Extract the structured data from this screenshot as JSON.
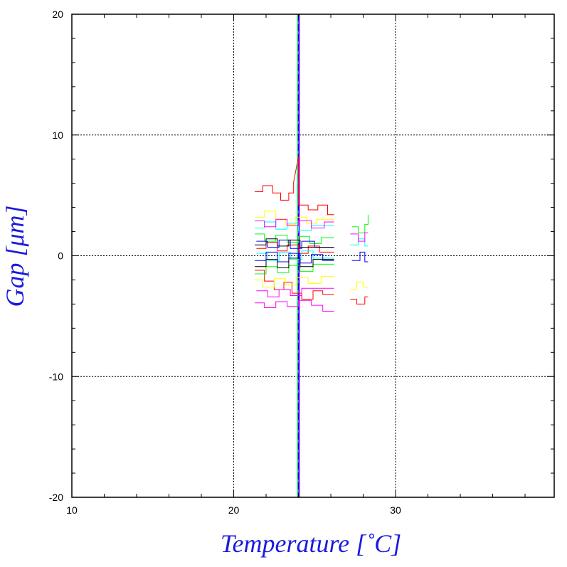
{
  "chart_data": {
    "type": "line",
    "title": "",
    "xlabel": "Temperature [˚C]",
    "ylabel": "Gap [μm]",
    "xlim": [
      10,
      39.8
    ],
    "ylim": [
      -20,
      20
    ],
    "x_ticks": [
      10,
      20,
      30
    ],
    "y_ticks": [
      -20,
      -10,
      0,
      10,
      20
    ],
    "grid": true,
    "legend": "none",
    "colors": [
      "#ff0000",
      "#ffff00",
      "#00ff00",
      "#00ffff",
      "#0000ff",
      "#ff00ff",
      "#000000"
    ],
    "vertical_line": {
      "x": 24.0,
      "y_range": [
        -20,
        20
      ]
    },
    "series": [
      {
        "color": "#ff0000",
        "points": [
          [
            21.3,
            5.3
          ],
          [
            21.8,
            5.3
          ],
          [
            21.8,
            5.8
          ],
          [
            22.4,
            5.8
          ],
          [
            22.4,
            5.2
          ],
          [
            22.9,
            5.2
          ],
          [
            22.9,
            4.6
          ],
          [
            23.4,
            4.6
          ],
          [
            23.4,
            5.2
          ],
          [
            23.7,
            5.2
          ],
          [
            23.7,
            6.1
          ],
          [
            24.0,
            8.2
          ],
          [
            24.0,
            4.2
          ],
          [
            24.6,
            4.2
          ],
          [
            24.6,
            3.8
          ],
          [
            25.2,
            3.8
          ],
          [
            25.2,
            4.2
          ],
          [
            25.8,
            4.2
          ],
          [
            25.8,
            3.4
          ],
          [
            26.2,
            3.4
          ]
        ]
      },
      {
        "color": "#ff0000",
        "points": [
          [
            21.3,
            -1.2
          ],
          [
            21.9,
            -1.2
          ],
          [
            21.9,
            -2.1
          ],
          [
            22.5,
            -2.1
          ],
          [
            22.5,
            -2.8
          ],
          [
            23.1,
            -2.8
          ],
          [
            23.1,
            -2.2
          ],
          [
            23.6,
            -2.2
          ],
          [
            23.6,
            -3.1
          ],
          [
            24.2,
            -3.1
          ],
          [
            24.2,
            -3.6
          ],
          [
            24.9,
            -3.6
          ],
          [
            24.9,
            -2.9
          ],
          [
            25.5,
            -2.9
          ],
          [
            25.5,
            -3.2
          ],
          [
            26.2,
            -3.2
          ]
        ]
      },
      {
        "color": "#ff0000",
        "points": [
          [
            27.2,
            -3.6
          ],
          [
            27.6,
            -3.6
          ],
          [
            27.6,
            -4.0
          ],
          [
            28.1,
            -4.0
          ],
          [
            28.1,
            -3.4
          ],
          [
            28.3,
            -3.4
          ]
        ]
      },
      {
        "color": "#ff0000",
        "points": [
          [
            21.4,
            0.6
          ],
          [
            22.0,
            0.6
          ],
          [
            22.0,
            1.1
          ],
          [
            22.7,
            1.1
          ],
          [
            22.7,
            0.4
          ],
          [
            23.3,
            0.4
          ],
          [
            23.3,
            0.9
          ],
          [
            24.0,
            0.9
          ],
          [
            24.0,
            0.2
          ],
          [
            24.6,
            0.2
          ],
          [
            24.6,
            0.8
          ],
          [
            25.3,
            0.8
          ],
          [
            25.3,
            0.3
          ],
          [
            26.2,
            0.3
          ]
        ]
      },
      {
        "color": "#ffff00",
        "points": [
          [
            21.3,
            3.2
          ],
          [
            21.9,
            3.2
          ],
          [
            21.9,
            3.7
          ],
          [
            22.6,
            3.7
          ],
          [
            22.6,
            3.1
          ],
          [
            23.2,
            3.1
          ],
          [
            23.2,
            2.6
          ],
          [
            23.8,
            2.6
          ],
          [
            23.8,
            3.2
          ],
          [
            24.5,
            3.2
          ],
          [
            24.5,
            2.7
          ],
          [
            25.1,
            2.7
          ],
          [
            25.1,
            3.0
          ],
          [
            26.2,
            3.0
          ]
        ]
      },
      {
        "color": "#ffff00",
        "points": [
          [
            21.3,
            -2.0
          ],
          [
            21.8,
            -2.0
          ],
          [
            21.8,
            -2.6
          ],
          [
            22.5,
            -2.6
          ],
          [
            22.5,
            -1.9
          ],
          [
            23.2,
            -1.9
          ],
          [
            23.2,
            -2.4
          ],
          [
            23.9,
            -2.4
          ],
          [
            23.9,
            -1.8
          ],
          [
            24.6,
            -1.8
          ],
          [
            24.6,
            -2.3
          ],
          [
            25.4,
            -2.3
          ],
          [
            25.4,
            -1.7
          ],
          [
            26.2,
            -1.7
          ]
        ]
      },
      {
        "color": "#ffff00",
        "points": [
          [
            27.2,
            -2.8
          ],
          [
            27.6,
            -2.8
          ],
          [
            27.6,
            -2.2
          ],
          [
            28.0,
            -2.2
          ],
          [
            28.0,
            -2.6
          ],
          [
            28.3,
            -2.6
          ]
        ]
      },
      {
        "color": "#00ff00",
        "points": [
          [
            21.3,
            1.8
          ],
          [
            21.9,
            1.8
          ],
          [
            21.9,
            1.2
          ],
          [
            22.6,
            1.2
          ],
          [
            22.6,
            1.7
          ],
          [
            23.3,
            1.7
          ],
          [
            23.3,
            1.1
          ],
          [
            24.0,
            1.1
          ],
          [
            24.0,
            1.6
          ],
          [
            24.7,
            1.6
          ],
          [
            24.7,
            1.0
          ],
          [
            25.4,
            1.0
          ],
          [
            25.4,
            1.5
          ],
          [
            26.2,
            1.5
          ]
        ]
      },
      {
        "color": "#00ff00",
        "points": [
          [
            21.3,
            -1.5
          ],
          [
            22.0,
            -1.5
          ],
          [
            22.0,
            -0.9
          ],
          [
            22.7,
            -0.9
          ],
          [
            22.7,
            -1.4
          ],
          [
            23.4,
            -1.4
          ],
          [
            23.4,
            -0.8
          ],
          [
            24.1,
            -0.8
          ],
          [
            24.1,
            -1.3
          ],
          [
            24.9,
            -1.3
          ],
          [
            24.9,
            -0.7
          ],
          [
            26.2,
            -0.7
          ]
        ]
      },
      {
        "color": "#00ff00",
        "points": [
          [
            27.3,
            2.4
          ],
          [
            27.7,
            2.4
          ],
          [
            27.7,
            1.9
          ],
          [
            28.1,
            1.9
          ],
          [
            28.1,
            2.6
          ],
          [
            28.3,
            2.6
          ],
          [
            28.3,
            3.4
          ]
        ]
      },
      {
        "color": "#00ffff",
        "points": [
          [
            21.4,
            0.2
          ],
          [
            22.1,
            0.2
          ],
          [
            22.1,
            -0.4
          ],
          [
            22.8,
            -0.4
          ],
          [
            22.8,
            0.3
          ],
          [
            23.5,
            0.3
          ],
          [
            23.5,
            -0.3
          ],
          [
            24.2,
            -0.3
          ],
          [
            24.2,
            0.4
          ],
          [
            24.9,
            0.4
          ],
          [
            24.9,
            -0.2
          ],
          [
            26.2,
            -0.2
          ]
        ]
      },
      {
        "color": "#00ffff",
        "points": [
          [
            21.3,
            2.3
          ],
          [
            21.9,
            2.3
          ],
          [
            21.9,
            2.8
          ],
          [
            22.6,
            2.8
          ],
          [
            22.6,
            2.2
          ],
          [
            23.3,
            2.2
          ],
          [
            23.3,
            2.7
          ],
          [
            24.0,
            2.7
          ],
          [
            24.0,
            2.1
          ],
          [
            24.8,
            2.1
          ],
          [
            24.8,
            2.5
          ],
          [
            26.2,
            2.5
          ]
        ]
      },
      {
        "color": "#00ffff",
        "points": [
          [
            27.2,
            0.9
          ],
          [
            27.7,
            0.9
          ],
          [
            27.7,
            1.4
          ],
          [
            28.1,
            1.4
          ],
          [
            28.1,
            0.8
          ],
          [
            28.3,
            0.8
          ]
        ]
      },
      {
        "color": "#0000ff",
        "points": [
          [
            21.3,
            -0.4
          ],
          [
            22.0,
            -0.4
          ],
          [
            22.0,
            0.3
          ],
          [
            22.7,
            0.3
          ],
          [
            22.7,
            -0.5
          ],
          [
            23.4,
            -0.5
          ],
          [
            23.4,
            0.2
          ],
          [
            24.1,
            0.2
          ],
          [
            24.1,
            -0.6
          ],
          [
            24.8,
            -0.6
          ],
          [
            24.8,
            0.1
          ],
          [
            25.5,
            0.1
          ],
          [
            25.5,
            -0.4
          ],
          [
            26.2,
            -0.4
          ]
        ]
      },
      {
        "color": "#0000ff",
        "points": [
          [
            21.4,
            1.2
          ],
          [
            22.1,
            1.2
          ],
          [
            22.1,
            0.7
          ],
          [
            22.8,
            0.7
          ],
          [
            22.8,
            1.3
          ],
          [
            23.5,
            1.3
          ],
          [
            23.5,
            0.6
          ],
          [
            24.2,
            0.6
          ],
          [
            24.2,
            1.2
          ],
          [
            25.0,
            1.2
          ],
          [
            25.0,
            0.7
          ],
          [
            26.2,
            0.7
          ]
        ]
      },
      {
        "color": "#0000ff",
        "points": [
          [
            27.3,
            -0.4
          ],
          [
            27.8,
            -0.4
          ],
          [
            27.8,
            0.3
          ],
          [
            28.1,
            0.3
          ],
          [
            28.1,
            -0.5
          ],
          [
            28.3,
            -0.5
          ]
        ]
      },
      {
        "color": "#ff00ff",
        "points": [
          [
            21.3,
            2.9
          ],
          [
            21.9,
            2.9
          ],
          [
            21.9,
            2.4
          ],
          [
            22.6,
            2.4
          ],
          [
            22.6,
            3.0
          ],
          [
            23.3,
            3.0
          ],
          [
            23.3,
            2.5
          ],
          [
            24.0,
            2.5
          ],
          [
            24.0,
            2.9
          ],
          [
            24.8,
            2.9
          ],
          [
            24.8,
            2.3
          ],
          [
            25.6,
            2.3
          ],
          [
            25.6,
            2.8
          ],
          [
            26.2,
            2.8
          ]
        ]
      },
      {
        "color": "#ff00ff",
        "points": [
          [
            21.3,
            -3.9
          ],
          [
            21.9,
            -3.9
          ],
          [
            21.9,
            -4.3
          ],
          [
            22.6,
            -4.3
          ],
          [
            22.6,
            -3.8
          ],
          [
            23.3,
            -3.8
          ],
          [
            23.3,
            -4.2
          ],
          [
            24.0,
            -4.2
          ],
          [
            24.0,
            -3.7
          ],
          [
            24.8,
            -3.7
          ],
          [
            24.8,
            -4.1
          ],
          [
            25.5,
            -4.1
          ],
          [
            25.5,
            -4.6
          ],
          [
            26.2,
            -4.6
          ]
        ]
      },
      {
        "color": "#ff00ff",
        "points": [
          [
            27.2,
            1.8
          ],
          [
            27.7,
            1.8
          ],
          [
            27.7,
            1.2
          ],
          [
            28.1,
            1.2
          ],
          [
            28.1,
            1.9
          ],
          [
            28.3,
            1.9
          ]
        ]
      },
      {
        "color": "#ff00ff",
        "points": [
          [
            21.4,
            -2.9
          ],
          [
            22.1,
            -2.9
          ],
          [
            22.1,
            -3.4
          ],
          [
            22.8,
            -3.4
          ],
          [
            22.8,
            -2.8
          ],
          [
            23.5,
            -2.8
          ],
          [
            23.5,
            -3.3
          ],
          [
            24.2,
            -3.3
          ],
          [
            24.2,
            -2.7
          ],
          [
            26.2,
            -2.7
          ]
        ]
      },
      {
        "color": "#000000",
        "points": [
          [
            21.3,
            -0.9
          ],
          [
            22.0,
            -0.9
          ],
          [
            22.0,
            -0.3
          ],
          [
            22.7,
            -0.3
          ],
          [
            22.7,
            -1.0
          ],
          [
            23.4,
            -1.0
          ],
          [
            23.4,
            -0.2
          ],
          [
            24.1,
            -0.2
          ],
          [
            24.1,
            -0.9
          ],
          [
            24.9,
            -0.9
          ],
          [
            24.9,
            -0.3
          ],
          [
            26.2,
            -0.3
          ]
        ]
      },
      {
        "color": "#000000",
        "points": [
          [
            21.3,
            0.9
          ],
          [
            22.0,
            0.9
          ],
          [
            22.0,
            1.4
          ],
          [
            22.7,
            1.4
          ],
          [
            22.7,
            0.8
          ],
          [
            23.4,
            0.8
          ],
          [
            23.4,
            1.3
          ],
          [
            24.1,
            1.3
          ],
          [
            24.1,
            0.7
          ],
          [
            26.2,
            0.7
          ]
        ]
      }
    ]
  }
}
